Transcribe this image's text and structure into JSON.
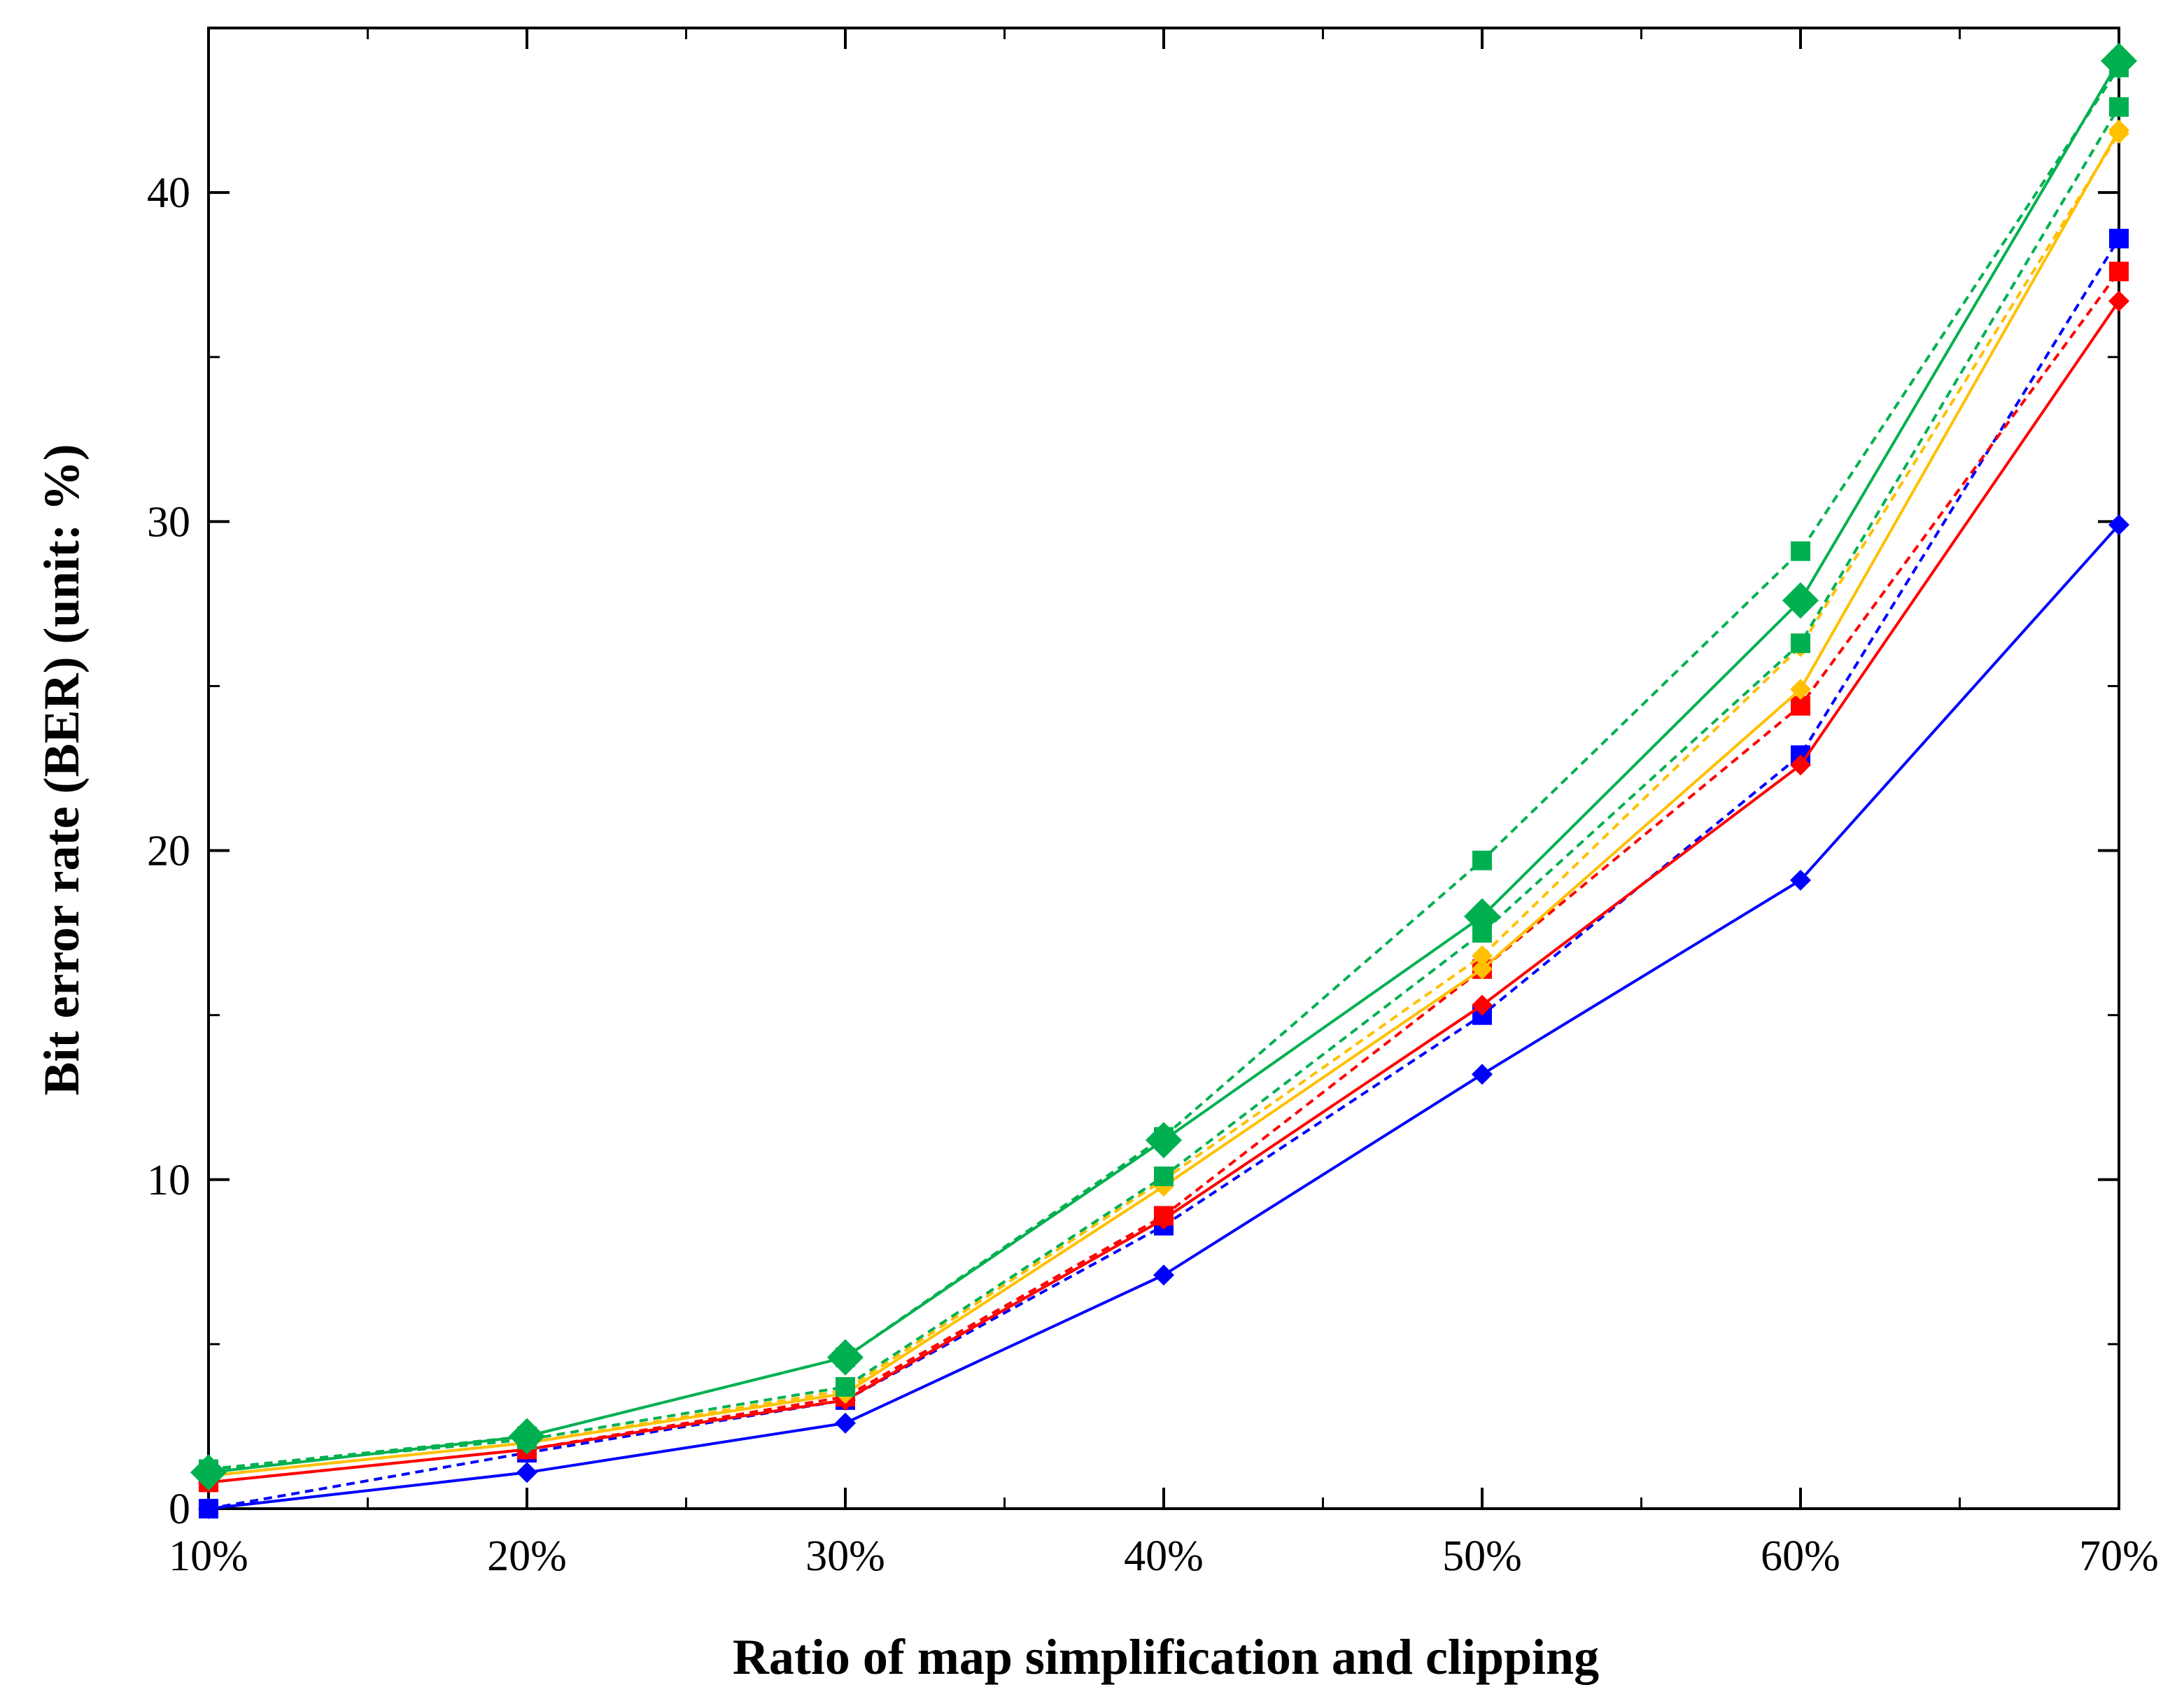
{
  "chart_data": {
    "type": "line",
    "title": "",
    "xlabel": "Ratio of map simplification and clipping",
    "ylabel": "Bit error rate (BER) (unit: %)",
    "x": [
      "10%",
      "20%",
      "30%",
      "40%",
      "50%",
      "60%",
      "70%"
    ],
    "ylim": [
      0,
      45
    ],
    "yticks": [
      "0",
      "10",
      "20",
      "30",
      "40"
    ],
    "grid": false,
    "series": [
      {
        "color": "#0000ff",
        "line": "solid",
        "marker": "diamond",
        "values": [
          0.0,
          1.1,
          2.6,
          7.1,
          13.2,
          19.1,
          29.9
        ]
      },
      {
        "color": "#0000ff",
        "line": "dashed",
        "marker": "square",
        "values": [
          0.0,
          1.7,
          3.3,
          8.6,
          15.0,
          22.9,
          38.6
        ]
      },
      {
        "color": "#ff0000",
        "line": "solid",
        "marker": "diamond",
        "values": [
          0.8,
          1.8,
          3.3,
          8.8,
          15.3,
          22.6,
          36.7
        ]
      },
      {
        "color": "#ff0000",
        "line": "dashed",
        "marker": "square",
        "values": [
          0.8,
          1.8,
          3.4,
          8.9,
          16.4,
          24.4,
          37.6
        ]
      },
      {
        "color": "#ffc000",
        "line": "solid",
        "marker": "diamond",
        "values": [
          1.0,
          2.0,
          3.5,
          9.8,
          16.4,
          24.9,
          41.9
        ]
      },
      {
        "color": "#ffc000",
        "line": "dashed",
        "marker": "diamond",
        "values": [
          1.0,
          2.0,
          3.6,
          10.0,
          16.8,
          26.2,
          41.8
        ]
      },
      {
        "color": "#00b050",
        "line": "solid",
        "marker": "diamond",
        "values": [
          1.1,
          2.2,
          4.6,
          11.2,
          18.0,
          27.6,
          44.0
        ]
      },
      {
        "color": "#00b050",
        "line": "dashed",
        "marker": "square",
        "values": [
          1.2,
          2.1,
          3.7,
          10.1,
          17.5,
          26.3,
          42.6
        ]
      },
      {
        "color": "#00b050",
        "line": "dashed",
        "marker": "square",
        "values": [
          1.2,
          2.2,
          4.6,
          11.3,
          19.7,
          29.1,
          43.8
        ]
      }
    ]
  }
}
